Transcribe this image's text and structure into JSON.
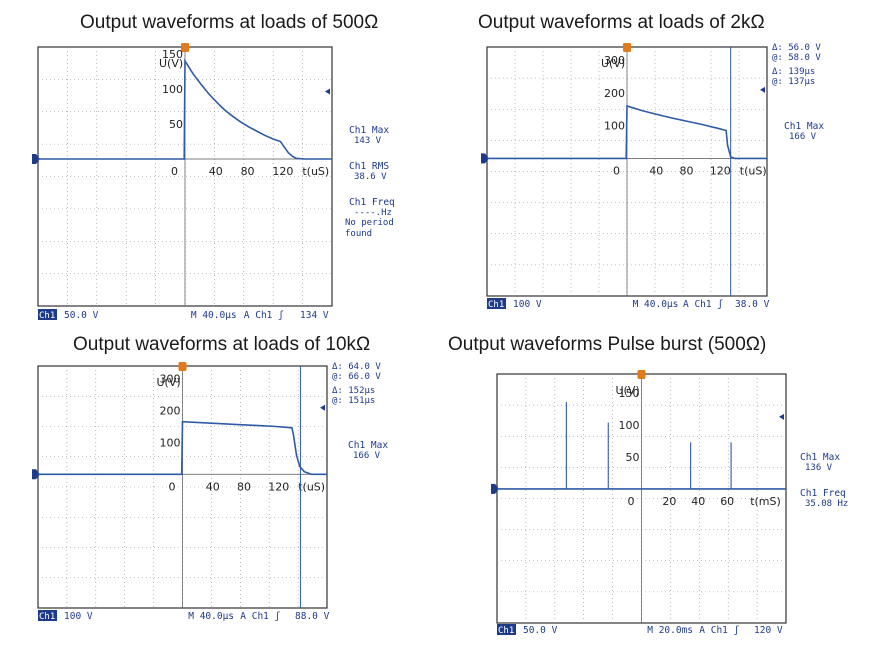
{
  "chart_data": [
    {
      "type": "line",
      "title": "Output waveforms at loads of 500Ω",
      "xlabel": "t(uS)",
      "ylabel": "U(V)",
      "x_ticks": [
        0,
        40,
        80,
        120
      ],
      "y_ticks": [
        50,
        100,
        150
      ],
      "xlim": [
        -185,
        185
      ],
      "ylim": [
        -210,
        160
      ],
      "series": [
        {
          "name": "Ch1",
          "x": [
            -185,
            -1,
            0,
            5,
            10,
            20,
            30,
            40,
            50,
            60,
            70,
            80,
            90,
            100,
            110,
            115,
            120,
            125,
            130,
            135,
            140,
            150,
            185
          ],
          "y": [
            0,
            0,
            140,
            131,
            122,
            107,
            93,
            81,
            70,
            61,
            53,
            46,
            40,
            34,
            29,
            27,
            25,
            17,
            9,
            4,
            1,
            0,
            0
          ]
        }
      ],
      "readouts": [
        {
          "label": "Ch1 Max",
          "value": "143 V"
        },
        {
          "label": "Ch1 RMS",
          "value": "38.6 V"
        },
        {
          "label": "Ch1 Freq",
          "value": "----.Hz",
          "extra": [
            "No period",
            "found"
          ]
        }
      ],
      "status": {
        "channel": "Ch1",
        "volts_div": "50.0 V",
        "timebase": "M 40.0µs",
        "trigger": "A  Ch1 ʃ",
        "trig_level": "134 V"
      }
    },
    {
      "type": "line",
      "title": "Output waveforms at loads of 2kΩ",
      "xlabel": "t(uS)",
      "ylabel": "U(V)",
      "x_ticks": [
        0,
        40,
        80,
        120
      ],
      "y_ticks": [
        100,
        200,
        300
      ],
      "xlim": [
        -185,
        185
      ],
      "ylim": [
        -420,
        340
      ],
      "series": [
        {
          "name": "Ch1",
          "x": [
            -185,
            -1,
            0,
            20,
            40,
            60,
            80,
            100,
            120,
            131,
            133,
            137,
            142,
            185
          ],
          "y": [
            0,
            0,
            160,
            146,
            134,
            123,
            113,
            103,
            92,
            85,
            40,
            5,
            0,
            0
          ]
        }
      ],
      "cursors": {
        "delta_v": "56.0 V",
        "at_v": "58.0 V",
        "delta_t": "139µs",
        "at_t": "137µs",
        "cursor_t": 137
      },
      "readouts": [
        {
          "label": "Ch1 Max",
          "value": "166 V"
        }
      ],
      "status": {
        "channel": "Ch1",
        "volts_div": "100 V",
        "timebase": "M 40.0µs",
        "trigger": "A  Ch1 ʃ",
        "trig_level": "38.0 V"
      }
    },
    {
      "type": "line",
      "title": "Output waveforms at loads of 10kΩ",
      "xlabel": "t(uS)",
      "ylabel": "U(V)",
      "x_ticks": [
        0,
        40,
        80,
        120
      ],
      "y_ticks": [
        100,
        200,
        300
      ],
      "xlim": [
        -185,
        185
      ],
      "ylim": [
        -420,
        340
      ],
      "series": [
        {
          "name": "Ch1",
          "x": [
            -185,
            -1,
            0,
            40,
            80,
            120,
            140,
            142,
            146,
            150,
            156,
            165,
            185
          ],
          "y": [
            0,
            0,
            165,
            160,
            155,
            150,
            146,
            125,
            60,
            25,
            8,
            0,
            0
          ]
        }
      ],
      "cursors": {
        "delta_v": "64.0 V",
        "at_v": "66.0 V",
        "delta_t": "152µs",
        "at_t": "151µs",
        "cursor_t": 151
      },
      "readouts": [
        {
          "label": "Ch1 Max",
          "value": "166 V"
        }
      ],
      "status": {
        "channel": "Ch1",
        "volts_div": "100 V",
        "timebase": "M 40.0µs",
        "trigger": "A  Ch1 ʃ",
        "trig_level": "88.0 V"
      }
    },
    {
      "type": "line",
      "title": "Output waveforms Pulse burst (500Ω)",
      "xlabel": "t(mS)",
      "ylabel": "U(V)",
      "x_ticks": [
        0,
        20,
        40,
        60
      ],
      "y_ticks": [
        50,
        100,
        150
      ],
      "xlim": [
        -100,
        100
      ],
      "ylim": [
        -210,
        180
      ],
      "series": [
        {
          "name": "Ch1",
          "pulse_times": [
            -52,
            -23,
            34,
            62
          ],
          "pulse_peaks": [
            136,
            104,
            73,
            73
          ]
        }
      ],
      "readouts": [
        {
          "label": "Ch1 Max",
          "value": "136 V"
        },
        {
          "label": "Ch1 Freq",
          "value": "35.08 Hz"
        }
      ],
      "status": {
        "channel": "Ch1",
        "volts_div": "50.0 V",
        "timebase": "M 20.0ms",
        "trigger": "A  Ch1 ʃ",
        "trig_level": "120 V"
      }
    }
  ]
}
